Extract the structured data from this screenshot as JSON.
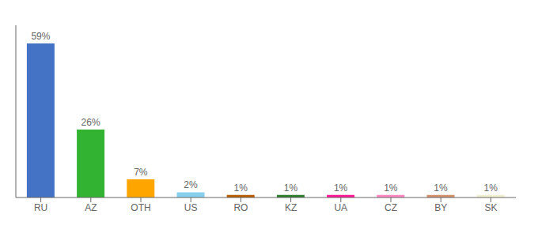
{
  "chart_data": {
    "type": "bar",
    "categories": [
      "RU",
      "AZ",
      "OTH",
      "US",
      "RO",
      "KZ",
      "UA",
      "CZ",
      "BY",
      "SK"
    ],
    "values": [
      59,
      26,
      7,
      2,
      1,
      1,
      1,
      1,
      1,
      1
    ],
    "value_labels": [
      "59%",
      "26%",
      "7%",
      "2%",
      "1%",
      "1%",
      "1%",
      "1%",
      "1%",
      "1%"
    ],
    "colors": [
      "#4472C4",
      "#32B432",
      "#FFA500",
      "#87CEEB",
      "#B85C00",
      "#2E7D2E",
      "#FF1493",
      "#FF85C0",
      "#D2906A",
      "#F0EFD0"
    ],
    "ylim": [
      0,
      66
    ],
    "data_labels": true,
    "tick_labels": "x",
    "grid": false
  }
}
